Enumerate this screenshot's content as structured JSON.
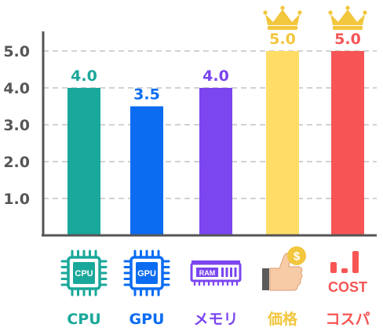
{
  "chart_data": {
    "type": "bar",
    "categories": [
      "CPU",
      "GPU",
      "メモリ",
      "価格",
      "コスパ"
    ],
    "values": [
      4.0,
      3.5,
      4.0,
      5.0,
      5.0
    ],
    "value_labels": [
      "4.0",
      "3.5",
      "4.0",
      "5.0",
      "5.0"
    ],
    "colors": [
      "#1aa89a",
      "#0b6cf2",
      "#7b45f0",
      "#ffdd66",
      "#f75555"
    ],
    "label_colors": [
      "#1aa89a",
      "#0b6cf2",
      "#7b45f0",
      "#f2c63d",
      "#f75555"
    ],
    "crowned": [
      false,
      false,
      false,
      true,
      true
    ],
    "yticks": [
      "1.0",
      "2.0",
      "3.0",
      "4.0",
      "5.0"
    ],
    "ylim": [
      0,
      5.0
    ],
    "grid": true,
    "icons": [
      "cpu-chip-icon",
      "gpu-chip-icon",
      "ram-module-icon",
      "thumbs-up-coin-icon",
      "cost-chart-icon"
    ],
    "icon_text": {
      "cpu": "CPU",
      "gpu": "GPU",
      "ram": "RAM",
      "coin": "$",
      "cost": "COST"
    },
    "title": "",
    "xlabel": "",
    "ylabel": ""
  }
}
